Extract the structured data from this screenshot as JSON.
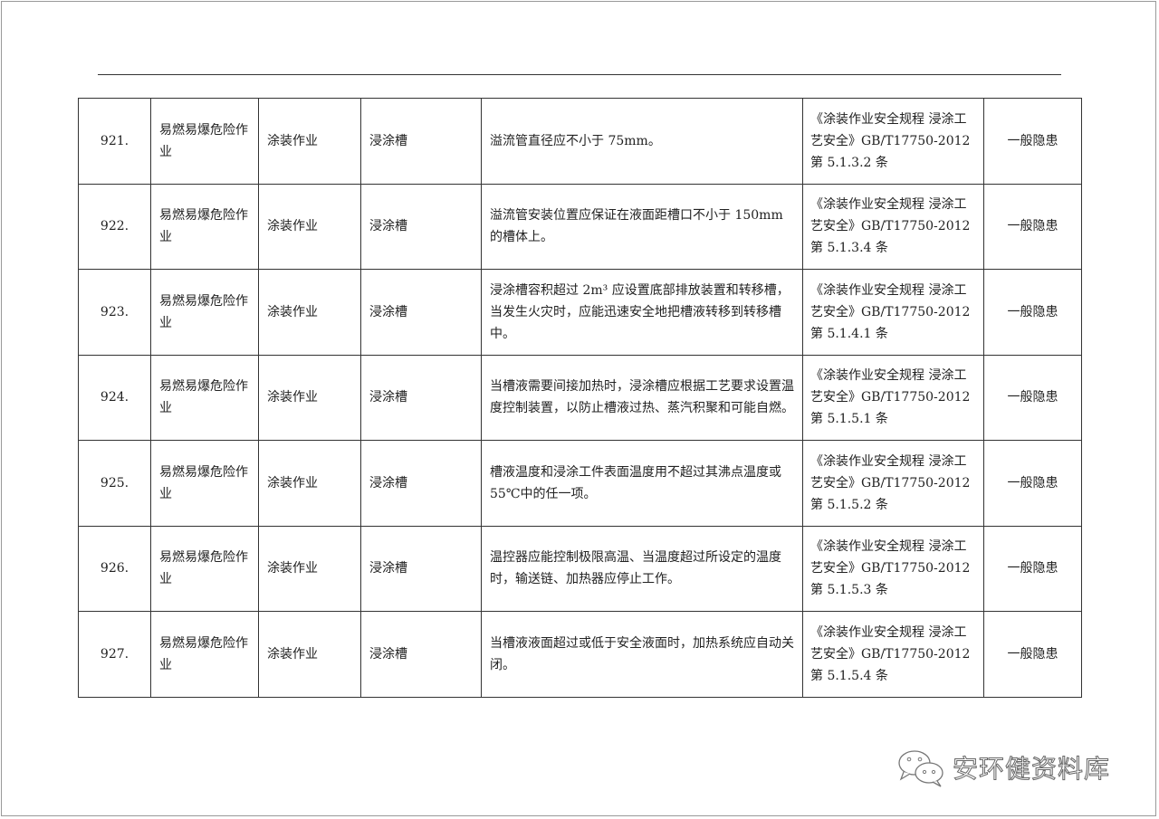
{
  "rows": [
    {
      "no": "921.",
      "category": "易燃易爆危险作业",
      "operation": "涂装作业",
      "location": "浸涂槽",
      "content": "溢流管直径应不小于 75mm。",
      "basis": "《涂装作业安全规程 浸涂工艺安全》GB/T17750-2012 第 5.1.3.2 条",
      "level": "一般隐患"
    },
    {
      "no": "922.",
      "category": "易燃易爆危险作业",
      "operation": "涂装作业",
      "location": "浸涂槽",
      "content": "溢流管安装位置应保证在液面距槽口不小于 150mm 的槽体上。",
      "basis": "《涂装作业安全规程 浸涂工艺安全》GB/T17750-2012 第 5.1.3.4 条",
      "level": "一般隐患"
    },
    {
      "no": "923.",
      "category": "易燃易爆危险作业",
      "operation": "涂装作业",
      "location": "浸涂槽",
      "content": "浸涂槽容积超过 2m³ 应设置底部排放装置和转移槽，当发生火灾时，应能迅速安全地把槽液转移到转移槽中。",
      "basis": "《涂装作业安全规程 浸涂工艺安全》GB/T17750-2012 第 5.1.4.1 条",
      "level": "一般隐患"
    },
    {
      "no": "924.",
      "category": "易燃易爆危险作业",
      "operation": "涂装作业",
      "location": "浸涂槽",
      "content": "当槽液需要间接加热时，浸涂槽应根据工艺要求设置温度控制装置，以防止槽液过热、蒸汽积聚和可能自燃。",
      "basis": "《涂装作业安全规程 浸涂工艺安全》GB/T17750-2012 第 5.1.5.1 条",
      "level": "一般隐患"
    },
    {
      "no": "925.",
      "category": "易燃易爆危险作业",
      "operation": "涂装作业",
      "location": "浸涂槽",
      "content": "槽液温度和浸涂工件表面温度用不超过其沸点温度或 55℃中的任一项。",
      "basis": "《涂装作业安全规程 浸涂工艺安全》GB/T17750-2012 第 5.1.5.2 条",
      "level": "一般隐患"
    },
    {
      "no": "926.",
      "category": "易燃易爆危险作业",
      "operation": "涂装作业",
      "location": "浸涂槽",
      "content": "温控器应能控制极限高温、当温度超过所设定的温度时，输送链、加热器应停止工作。",
      "basis": "《涂装作业安全规程 浸涂工艺安全》GB/T17750-2012 第 5.1.5.3 条",
      "level": "一般隐患"
    },
    {
      "no": "927.",
      "category": "易燃易爆危险作业",
      "operation": "涂装作业",
      "location": "浸涂槽",
      "content": "当槽液液面超过或低于安全液面时，加热系统应自动关闭。",
      "basis": "《涂装作业安全规程 浸涂工艺安全》GB/T17750-2012 第 5.1.5.4 条",
      "level": "一般隐患"
    }
  ],
  "watermark": {
    "icon": "wechat-icon",
    "text": "安环健资料库"
  }
}
